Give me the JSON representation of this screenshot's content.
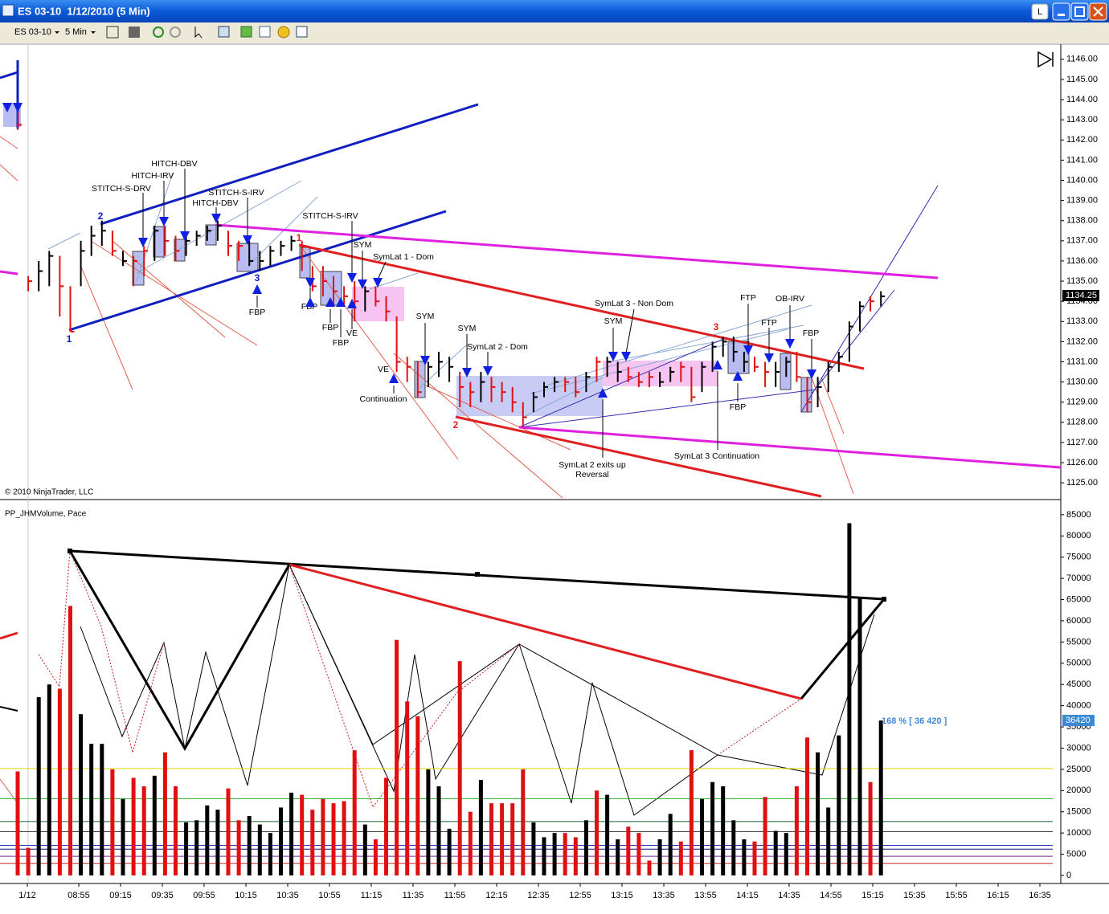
{
  "window": {
    "title": "ES 03-10  1/12/2010 (5 Min)",
    "button": "L"
  },
  "toolbar": {
    "instrument": "ES 03-10",
    "interval": "5 Min"
  },
  "chart_data": [
    {
      "type": "ohlc",
      "watermark": "© 2010 NinjaTrader, LLC",
      "last_label": "1134.25",
      "ylim": [
        1124.25,
        1146.75
      ],
      "yticks": [
        {
          "value": 1125,
          "label": "1125.00"
        },
        {
          "value": 1126,
          "label": "1126.00"
        },
        {
          "value": 1127,
          "label": "1127.00"
        },
        {
          "value": 1128,
          "label": "1128.00"
        },
        {
          "value": 1129,
          "label": "1129.00"
        },
        {
          "value": 1130,
          "label": "1130.00"
        },
        {
          "value": 1131,
          "label": "1131.00"
        },
        {
          "value": 1132,
          "label": "1132.00"
        },
        {
          "value": 1133,
          "label": "1133.00"
        },
        {
          "value": 1134,
          "label": "1134.00"
        },
        {
          "value": 1135,
          "label": "1135.00"
        },
        {
          "value": 1136,
          "label": "1136.00"
        },
        {
          "value": 1137,
          "label": "1137.00"
        },
        {
          "value": 1138,
          "label": "1138.00"
        },
        {
          "value": 1139,
          "label": "1139.00"
        },
        {
          "value": 1140,
          "label": "1140.00"
        },
        {
          "value": 1141,
          "label": "1141.00"
        },
        {
          "value": 1142,
          "label": "1142.00"
        },
        {
          "value": 1143,
          "label": "1143.00"
        },
        {
          "value": 1144,
          "label": "1144.00"
        },
        {
          "value": 1145,
          "label": "1145.00"
        },
        {
          "value": 1146,
          "label": "1146.00"
        }
      ],
      "high": [
        1143.5,
        1135.25,
        1136,
        1136.5,
        1136.25,
        1134.75,
        1137,
        1137.75,
        1138,
        1137.5,
        1136.5,
        1136.25,
        1136.75,
        1137.75,
        1137.75,
        1137.25,
        1137.25,
        1137.5,
        1137.75,
        1138,
        1137.5,
        1137,
        1137,
        1136.5,
        1136.75,
        1137,
        1137.25,
        1137,
        1135.75,
        1135.75,
        1135.25,
        1134.75,
        1135,
        1134.75,
        1134.75,
        1134.25,
        1133.25,
        1131.25,
        1131,
        1131,
        1131.5,
        1131.25,
        1130.5,
        1130,
        1130.5,
        1130.25,
        1130,
        1129.75,
        1129,
        1129.5,
        1130,
        1130.25,
        1130.25,
        1130.25,
        1130.5,
        1131.25,
        1131.25,
        1131,
        1130.75,
        1130.5,
        1130.5,
        1130.5,
        1130.75,
        1131,
        1130.75,
        1131,
        1132,
        1132.25,
        1132.25,
        1131.5,
        1131.25,
        1131,
        1131,
        1131.25,
        1131.5,
        1130.25,
        1130.25,
        1131,
        1131.5,
        1133,
        1134,
        1134.25,
        1134.5
      ],
      "low": [
        1142.5,
        1134.5,
        1134.5,
        1134.75,
        1133.25,
        1132.5,
        1134.75,
        1136.25,
        1136.75,
        1136.25,
        1135.75,
        1134.75,
        1135.25,
        1136,
        1136.25,
        1136,
        1136.25,
        1136.75,
        1137,
        1137,
        1136.25,
        1136,
        1135.75,
        1135.5,
        1135.75,
        1136.25,
        1136.5,
        1135.5,
        1134.5,
        1134.25,
        1133.75,
        1133.75,
        1133,
        1133.5,
        1133.75,
        1133,
        1130.5,
        1130,
        1129.25,
        1129.75,
        1130.25,
        1130,
        1128.75,
        1128.75,
        1129,
        1129,
        1129,
        1128.5,
        1127.75,
        1128.5,
        1129.25,
        1129.5,
        1129.5,
        1129.25,
        1129.5,
        1130,
        1130.25,
        1130,
        1130,
        1129.75,
        1129.75,
        1129.75,
        1130,
        1130,
        1129,
        1129.5,
        1130.5,
        1131.25,
        1131,
        1130.5,
        1130.5,
        1129.75,
        1129.75,
        1130.25,
        1130,
        1128.5,
        1128.75,
        1129.5,
        1130.5,
        1131,
        1132.5,
        1133.5,
        1133.75
      ],
      "close": [
        1142.75,
        1135,
        1135.5,
        1136.25,
        1134.75,
        1132.5,
        1136.5,
        1137.25,
        1137.5,
        1136.5,
        1136,
        1136,
        1136.5,
        1137.5,
        1137,
        1136.5,
        1137,
        1137.25,
        1137.5,
        1137.75,
        1136.75,
        1136.75,
        1136,
        1136,
        1136.5,
        1136.75,
        1137,
        1136.75,
        1134.75,
        1135,
        1134.5,
        1134.25,
        1134,
        1134.5,
        1134,
        1133.5,
        1131,
        1130.75,
        1129.5,
        1130.75,
        1131,
        1130.75,
        1129.75,
        1129.5,
        1130,
        1129.75,
        1129.5,
        1129,
        1128.25,
        1129.25,
        1129.75,
        1130,
        1130,
        1129.5,
        1130.25,
        1131,
        1131,
        1130.5,
        1130.25,
        1130,
        1130.25,
        1130,
        1130.5,
        1130.75,
        1129.25,
        1130.75,
        1131.75,
        1132,
        1131.5,
        1131,
        1130.75,
        1130.5,
        1130.5,
        1131,
        1130.25,
        1129,
        1129.75,
        1130.75,
        1131.25,
        1132.75,
        1133.75,
        1134,
        1134.25
      ],
      "annotations": [
        "STITCH-S-DRV",
        "HITCH-IRV",
        "HITCH-DBV",
        "STITCH-S-IRV",
        "HITCH-DBV",
        "STITCH-S-IRV",
        "SYM",
        "SymLat 1 - Dom",
        "FBP",
        "FBP",
        "FBP",
        "VE",
        "FBP",
        "VE",
        "Continuation",
        "SYM",
        "SYM",
        "SymLat 2 - Dom",
        "SymLat 3 - Non Dom",
        "SYM",
        "FTP",
        "OB-IRV",
        "FTP",
        "FBP",
        "FBP",
        "SymLat 3 Continuation",
        "SymLat 2 exits up",
        "Reversal",
        "1",
        "2",
        "3",
        "1",
        "2",
        "3"
      ]
    },
    {
      "type": "bar",
      "title": "PP_JHMVolume, Pace",
      "last_label": "36420",
      "pace_label": "168 % [ 36 420 ]",
      "ylim": [
        -1900,
        88000
      ],
      "yticks": [
        0,
        5000,
        10000,
        15000,
        20000,
        25000,
        30000,
        35000,
        40000,
        45000,
        50000,
        55000,
        60000,
        65000,
        70000,
        75000,
        80000,
        85000
      ],
      "values": [
        24500,
        6500,
        42000,
        45000,
        44000,
        63500,
        38000,
        31000,
        31000,
        25000,
        18000,
        23000,
        21000,
        23500,
        29000,
        21000,
        12500,
        13000,
        16500,
        15500,
        20500,
        13000,
        14000,
        12000,
        10000,
        16000,
        19500,
        19000,
        15500,
        18000,
        17000,
        17500,
        29500,
        12000,
        8500,
        23000,
        55500,
        41000,
        37500,
        25000,
        21000,
        11000,
        50500,
        15000,
        22500,
        17000,
        17000,
        17000,
        25000,
        12500,
        9000,
        10000,
        10000,
        9000,
        13000,
        20000,
        19000,
        8500,
        11500,
        10000,
        3500,
        8500,
        14500,
        8000,
        29500,
        18000,
        22000,
        21000,
        13000,
        8500,
        8000,
        18500,
        10500,
        10000,
        21000,
        32500,
        29000,
        16000,
        33000,
        83000,
        65500,
        22000,
        36500
      ],
      "colors": [
        "#e01010",
        "#e01010",
        "#000000",
        "#000000",
        "#e01010",
        "#e01010",
        "#000000",
        "#000000",
        "#000000",
        "#e01010",
        "#000000",
        "#e01010",
        "#e01010",
        "#000000",
        "#e01010",
        "#e01010",
        "#000000",
        "#000000",
        "#000000",
        "#000000",
        "#e01010",
        "#e01010",
        "#000000",
        "#000000",
        "#000000",
        "#000000",
        "#000000",
        "#e01010",
        "#e01010",
        "#e01010",
        "#e01010",
        "#e01010",
        "#e01010",
        "#000000",
        "#e01010",
        "#e01010",
        "#e01010",
        "#e01010",
        "#e01010",
        "#000000",
        "#000000",
        "#000000",
        "#e01010",
        "#e01010",
        "#000000",
        "#e01010",
        "#e01010",
        "#e01010",
        "#e01010",
        "#000000",
        "#000000",
        "#000000",
        "#e01010",
        "#e01010",
        "#000000",
        "#e01010",
        "#000000",
        "#000000",
        "#e01010",
        "#e01010",
        "#e01010",
        "#000000",
        "#000000",
        "#e01010",
        "#e01010",
        "#000000",
        "#000000",
        "#000000",
        "#000000",
        "#000000",
        "#e01010",
        "#e01010",
        "#000000",
        "#000000",
        "#e01010",
        "#e01010",
        "#000000",
        "#000000",
        "#000000",
        "#000000",
        "#000000",
        "#e01010",
        "#000000"
      ],
      "levels": [
        {
          "value": 25200,
          "color": "#e8d800"
        },
        {
          "value": 18100,
          "color": "#20b020"
        },
        {
          "value": 12700,
          "color": "#106030"
        },
        {
          "value": 10300,
          "color": "#404040"
        },
        {
          "value": 7100,
          "color": "#2030c0"
        },
        {
          "value": 6200,
          "color": "#101080"
        },
        {
          "value": 4500,
          "color": "#8020a0"
        },
        {
          "value": 2800,
          "color": "#d02020"
        }
      ],
      "xtick_labels": [
        "1/12",
        "08:55",
        "09:15",
        "09:35",
        "09:55",
        "10:15",
        "10:35",
        "10:55",
        "11:15",
        "11:35",
        "11:55",
        "12:15",
        "12:35",
        "12:55",
        "13:15",
        "13:35",
        "13:55",
        "14:15",
        "14:35",
        "14:55",
        "15:15",
        "15:35",
        "15:55",
        "16:15",
        "16:35"
      ]
    }
  ]
}
